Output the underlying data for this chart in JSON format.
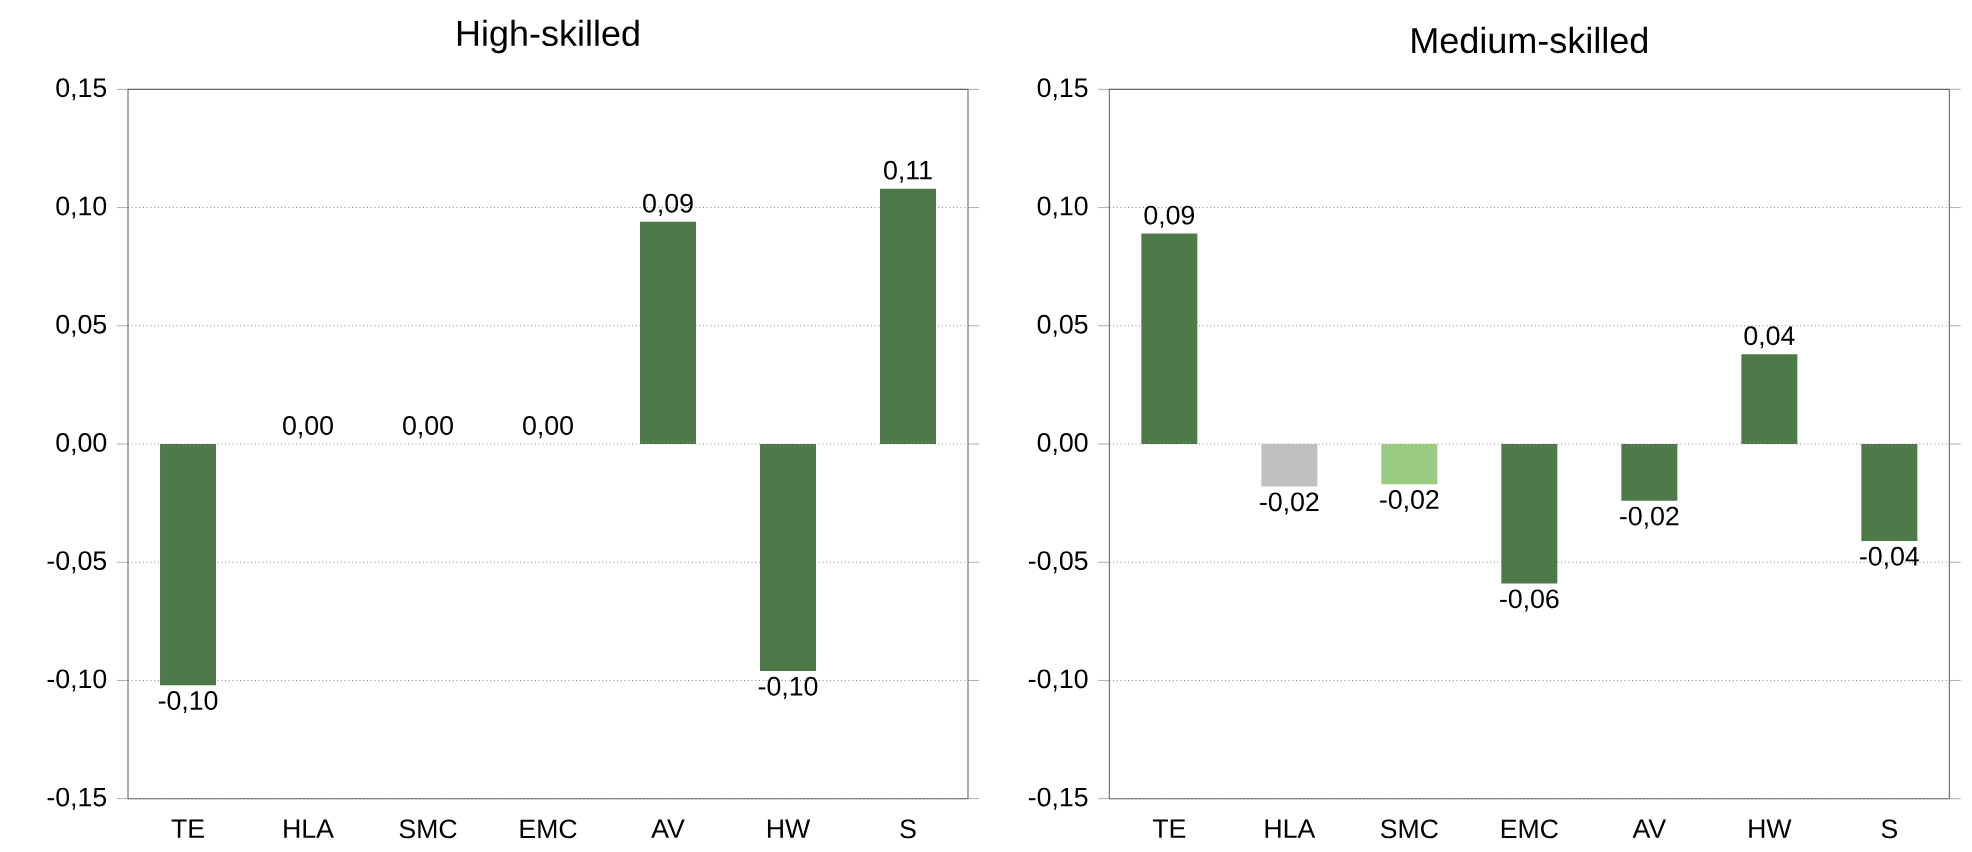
{
  "chart_data": [
    {
      "type": "bar",
      "title": "High-skilled",
      "categories": [
        "TE",
        "HLA",
        "SMC",
        "EMC",
        "AV",
        "HW",
        "S"
      ],
      "values": [
        -0.102,
        0,
        0,
        0,
        0.094,
        -0.096,
        0.108
      ],
      "value_labels": [
        "-0,10",
        "0,00",
        "0,00",
        "0,00",
        "0,09",
        "-0,10",
        "0,11"
      ],
      "colors": [
        "#4e7a4a",
        "#4e7a4a",
        "#4e7a4a",
        "#4e7a4a",
        "#4e7a4a",
        "#4e7a4a",
        "#4e7a4a"
      ],
      "ylim": [
        -0.15,
        0.15
      ],
      "yticks": [
        {
          "value": -0.15,
          "label": "-0,15"
        },
        {
          "value": -0.1,
          "label": "-0,10"
        },
        {
          "value": -0.05,
          "label": "-0,05"
        },
        {
          "value": 0,
          "label": "0,00"
        },
        {
          "value": 0.05,
          "label": "0,05"
        },
        {
          "value": 0.1,
          "label": "0,10"
        },
        {
          "value": 0.15,
          "label": "0,15"
        }
      ],
      "grid": "y"
    },
    {
      "type": "bar",
      "title": "Medium-skilled",
      "categories": [
        "TE",
        "HLA",
        "SMC",
        "EMC",
        "AV",
        "HW",
        "S"
      ],
      "values": [
        0.089,
        -0.018,
        -0.017,
        -0.059,
        -0.024,
        0.038,
        -0.041
      ],
      "value_labels": [
        "0,09",
        "-0,02",
        "-0,02",
        "-0,06",
        "-0,02",
        "0,04",
        "-0,04"
      ],
      "colors": [
        "#4e7a4a",
        "#bfbfbf",
        "#9bcc84",
        "#4e7a4a",
        "#4e7a4a",
        "#4e7a4a",
        "#4e7a4a"
      ],
      "ylim": [
        -0.15,
        0.15
      ],
      "yticks": [
        {
          "value": -0.15,
          "label": "-0,15"
        },
        {
          "value": -0.1,
          "label": "-0,10"
        },
        {
          "value": -0.05,
          "label": "-0,05"
        },
        {
          "value": 0,
          "label": "0,00"
        },
        {
          "value": 0.05,
          "label": "0,05"
        },
        {
          "value": 0.1,
          "label": "0,10"
        },
        {
          "value": 0.15,
          "label": "0,15"
        }
      ],
      "grid": "y"
    }
  ]
}
